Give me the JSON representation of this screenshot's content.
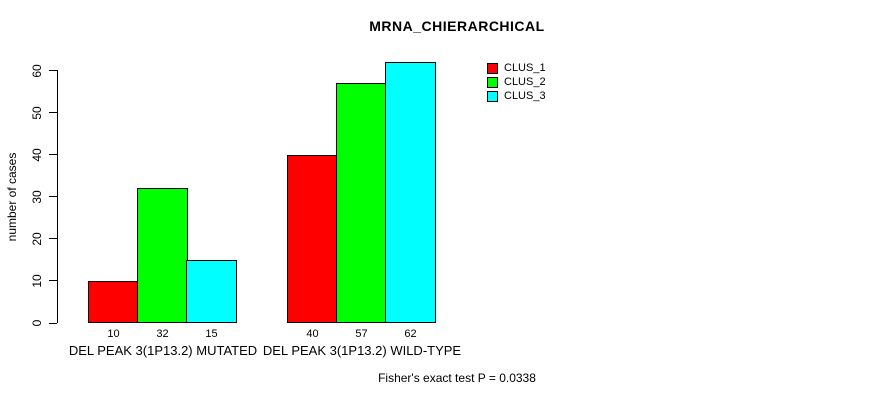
{
  "chart_data": {
    "type": "bar",
    "title": "MRNA_CHIERARCHICAL",
    "ylabel": "number of cases",
    "xlabel": "",
    "categories": [
      "DEL PEAK 3(1P13.2) MUTATED",
      "DEL PEAK 3(1P13.2) WILD-TYPE"
    ],
    "series": [
      {
        "name": "CLUS_1",
        "color": "#ff0000",
        "values": [
          10,
          40
        ]
      },
      {
        "name": "CLUS_2",
        "color": "#00ff00",
        "values": [
          32,
          57
        ]
      },
      {
        "name": "CLUS_3",
        "color": "#00ffff",
        "values": [
          15,
          62
        ]
      }
    ],
    "ylim": [
      0,
      60
    ],
    "yticks": [
      0,
      10,
      20,
      30,
      40,
      50,
      60
    ],
    "grid": false,
    "bar_labels_shown": true,
    "legend_position": "top-right",
    "footer": "Fisher's exact test P = 0.0338",
    "colors": {
      "axis": "#000000",
      "text": "#000000",
      "background": "#ffffff"
    }
  }
}
